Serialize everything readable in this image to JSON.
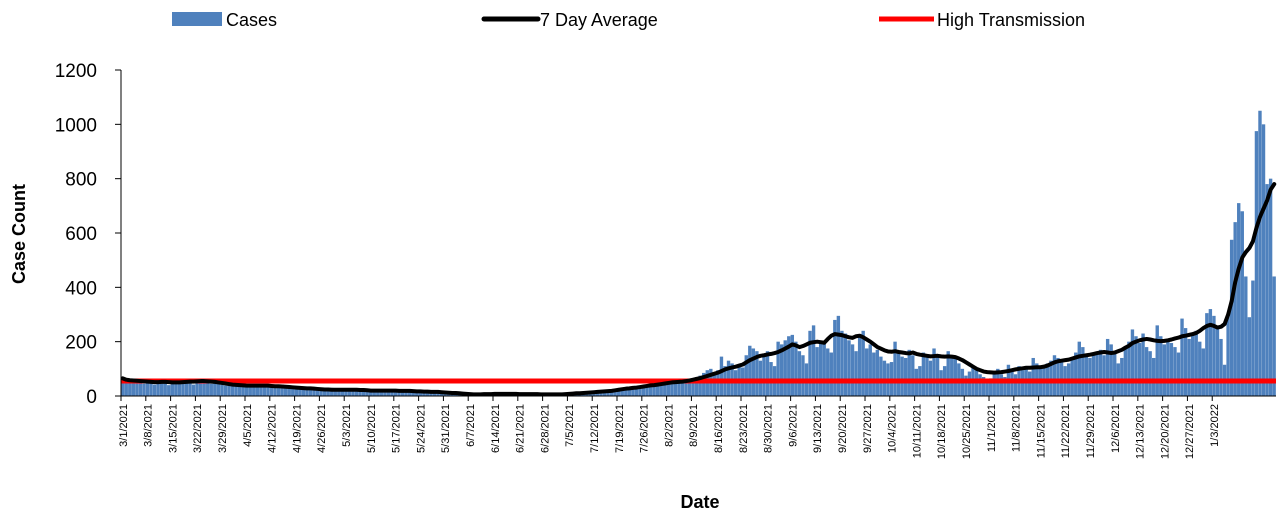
{
  "chart_data": {
    "type": "bar",
    "xlabel": "Date",
    "ylabel": "Case Count",
    "ylim": [
      0,
      1200
    ],
    "yticks": [
      "0",
      "200",
      "400",
      "600",
      "800",
      "1000",
      "1200"
    ],
    "grid": false,
    "legend_position": "top",
    "legend": [
      {
        "name": "Cases",
        "kind": "bar",
        "color": "#4f81bd"
      },
      {
        "name": "7 Day Average",
        "kind": "line",
        "color": "#000000"
      },
      {
        "name": "High Transmission",
        "kind": "line",
        "color": "#ff0000"
      }
    ],
    "x_tick_labels": [
      "3/1/2021",
      "3/8/2021",
      "3/15/2021",
      "3/22/2021",
      "3/29/2021",
      "4/5/2021",
      "4/12/2021",
      "4/19/2021",
      "4/26/2021",
      "5/3/2021",
      "5/10/2021",
      "5/17/2021",
      "5/24/2021",
      "5/31/2021",
      "6/7/2021",
      "6/14/2021",
      "6/21/2021",
      "6/28/2021",
      "7/5/2021",
      "7/12/2021",
      "7/19/2021",
      "7/26/2021",
      "8/2/2021",
      "8/9/2021",
      "8/16/2021",
      "8/23/2021",
      "8/30/2021",
      "9/6/2021",
      "9/13/2021",
      "9/20/2021",
      "9/27/2021",
      "10/4/2021",
      "10/11/2021",
      "10/18/2021",
      "10/25/2021",
      "11/1/2021",
      "11/8/2021",
      "11/15/2021",
      "11/22/2021",
      "11/29/2021",
      "12/6/2021",
      "12/13/2021",
      "12/20/2021",
      "12/27/2021",
      "1/3/2022"
    ],
    "high_transmission_threshold": 55,
    "series": [
      {
        "name": "Cases",
        "values": [
          70,
          62,
          55,
          48,
          52,
          58,
          45,
          50,
          55,
          42,
          48,
          60,
          52,
          40,
          45,
          50,
          52,
          48,
          55,
          58,
          42,
          55,
          60,
          58,
          50,
          45,
          52,
          48,
          42,
          38,
          40,
          35,
          45,
          40,
          38,
          36,
          40,
          42,
          38,
          35,
          40,
          35,
          38,
          35,
          30,
          42,
          36,
          32,
          28,
          30,
          28,
          26,
          35,
          28,
          25,
          22,
          26,
          24,
          22,
          30,
          25,
          22,
          20,
          25,
          24,
          20,
          28,
          22,
          24,
          18,
          20,
          18,
          22,
          20,
          18,
          25,
          20,
          22,
          20,
          18,
          24,
          20,
          18,
          15,
          18,
          16,
          15,
          20,
          16,
          18,
          12,
          14,
          12,
          10,
          15,
          12,
          10,
          8,
          8,
          6,
          5,
          10,
          8,
          6,
          4,
          6,
          8,
          5,
          10,
          12,
          8,
          6,
          8,
          6,
          5,
          8,
          10,
          6,
          4,
          5,
          6,
          4,
          8,
          6,
          5,
          4,
          6,
          8,
          10,
          12,
          10,
          8,
          6,
          12,
          14,
          16,
          18,
          15,
          20,
          18,
          22,
          25,
          28,
          30,
          26,
          32,
          30,
          38,
          40,
          35,
          42,
          45,
          40,
          48,
          50,
          52,
          48,
          55,
          58,
          62,
          55,
          60,
          70,
          75,
          85,
          95,
          100,
          80,
          95,
          145,
          110,
          130,
          120,
          95,
          110,
          105,
          150,
          185,
          175,
          165,
          130,
          145,
          165,
          125,
          110,
          200,
          190,
          205,
          220,
          225,
          200,
          165,
          150,
          120,
          240,
          260,
          180,
          200,
          195,
          175,
          160,
          280,
          295,
          240,
          230,
          205,
          190,
          165,
          220,
          240,
          175,
          190,
          160,
          170,
          145,
          130,
          120,
          125,
          200,
          160,
          145,
          140,
          170,
          150,
          100,
          110,
          160,
          145,
          130,
          175,
          150,
          95,
          110,
          165,
          150,
          140,
          120,
          100,
          75,
          90,
          110,
          95,
          80,
          70,
          60,
          65,
          85,
          100,
          80,
          70,
          115,
          90,
          80,
          110,
          95,
          100,
          90,
          140,
          120,
          100,
          110,
          120,
          130,
          150,
          140,
          125,
          110,
          120,
          140,
          160,
          200,
          180,
          150,
          140,
          160,
          155,
          170,
          150,
          210,
          190,
          160,
          120,
          140,
          180,
          200,
          245,
          220,
          195,
          230,
          180,
          165,
          140,
          260,
          220,
          190,
          210,
          195,
          180,
          160,
          285,
          250,
          210,
          230,
          240,
          200,
          175,
          305,
          320,
          295,
          250,
          210,
          115,
          300,
          575,
          640,
          710,
          680,
          440,
          290,
          425,
          975,
          1050,
          1000,
          780,
          800,
          440
        ]
      },
      {
        "name": "7 Day Average",
        "values": [
          65,
          60,
          58,
          57,
          56,
          55,
          54,
          53,
          52,
          51,
          51,
          52,
          52,
          51,
          50,
          50,
          50,
          51,
          52,
          53,
          53,
          54,
          55,
          55,
          54,
          53,
          52,
          50,
          48,
          46,
          44,
          42,
          41,
          40,
          39,
          38,
          38,
          38,
          38,
          38,
          38,
          38,
          37,
          36,
          36,
          35,
          34,
          33,
          32,
          31,
          30,
          29,
          28,
          28,
          27,
          26,
          25,
          24,
          24,
          23,
          23,
          23,
          23,
          23,
          23,
          23,
          23,
          22,
          22,
          21,
          20,
          20,
          20,
          20,
          20,
          20,
          20,
          20,
          19,
          19,
          19,
          19,
          18,
          17,
          17,
          16,
          16,
          15,
          15,
          15,
          14,
          13,
          12,
          11,
          11,
          10,
          9,
          8,
          7,
          6,
          6,
          6,
          7,
          7,
          7,
          8,
          8,
          8,
          8,
          8,
          8,
          8,
          7,
          7,
          7,
          7,
          7,
          7,
          6,
          6,
          6,
          6,
          6,
          6,
          6,
          7,
          8,
          9,
          10,
          10,
          11,
          12,
          13,
          14,
          15,
          16,
          17,
          18,
          19,
          21,
          23,
          25,
          27,
          28,
          30,
          31,
          33,
          35,
          37,
          39,
          40,
          42,
          44,
          46,
          48,
          50,
          51,
          52,
          53,
          55,
          57,
          60,
          63,
          66,
          70,
          74,
          78,
          82,
          86,
          92,
          98,
          102,
          105,
          108,
          112,
          116,
          124,
          132,
          138,
          144,
          148,
          150,
          153,
          155,
          158,
          162,
          168,
          175,
          182,
          190,
          186,
          180,
          184,
          190,
          196,
          198,
          200,
          198,
          196,
          210,
          222,
          228,
          226,
          224,
          220,
          216,
          214,
          220,
          222,
          216,
          208,
          200,
          190,
          180,
          174,
          168,
          164,
          163,
          165,
          162,
          160,
          158,
          157,
          160,
          155,
          152,
          150,
          148,
          146,
          147,
          148,
          146,
          145,
          146,
          145,
          143,
          138,
          132,
          124,
          116,
          108,
          100,
          95,
          90,
          88,
          87,
          86,
          87,
          88,
          90,
          92,
          95,
          98,
          100,
          102,
          104,
          104,
          105,
          106,
          106,
          108,
          112,
          118,
          124,
          128,
          130,
          132,
          134,
          138,
          142,
          146,
          148,
          150,
          152,
          155,
          158,
          160,
          162,
          160,
          158,
          160,
          165,
          170,
          178,
          185,
          195,
          200,
          205,
          208,
          210,
          208,
          205,
          203,
          202,
          203,
          205,
          208,
          212,
          215,
          220,
          222,
          225,
          228,
          232,
          240,
          250,
          258,
          262,
          258,
          252,
          255,
          265,
          300,
          350,
          420,
          470,
          510,
          530,
          545,
          570,
          620,
          660,
          690,
          720,
          760,
          780
        ]
      }
    ]
  }
}
